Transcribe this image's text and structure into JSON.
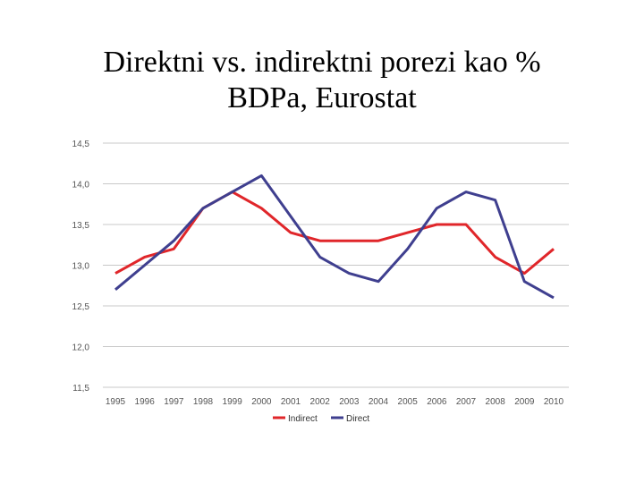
{
  "title_line1": "Direktni vs. indirektni porezi kao %",
  "title_line2": "BDPa, Eurostat",
  "chart_data": {
    "type": "line",
    "x": [
      "1995",
      "1996",
      "1997",
      "1998",
      "1999",
      "2000",
      "2001",
      "2002",
      "2003",
      "2004",
      "2005",
      "2006",
      "2007",
      "2008",
      "2009",
      "2010"
    ],
    "ylim": [
      11.5,
      14.5
    ],
    "yticks": [
      "11,5",
      "12,0",
      "12,5",
      "13,0",
      "13,5",
      "14,0",
      "14,5"
    ],
    "ytick_values": [
      11.5,
      12.0,
      12.5,
      13.0,
      13.5,
      14.0,
      14.5
    ],
    "grid": true,
    "legend": "bottom",
    "series": [
      {
        "name": "Indirect",
        "color": "#e0262a",
        "values": [
          12.9,
          13.1,
          13.2,
          13.7,
          13.9,
          13.7,
          13.4,
          13.3,
          13.3,
          13.3,
          13.4,
          13.5,
          13.5,
          13.1,
          12.9,
          13.2
        ]
      },
      {
        "name": "Direct",
        "color": "#3f3f8f",
        "values": [
          12.7,
          13.0,
          13.3,
          13.7,
          13.9,
          14.1,
          13.6,
          13.1,
          12.9,
          12.8,
          13.2,
          13.7,
          13.9,
          13.8,
          12.8,
          12.6
        ]
      }
    ]
  }
}
